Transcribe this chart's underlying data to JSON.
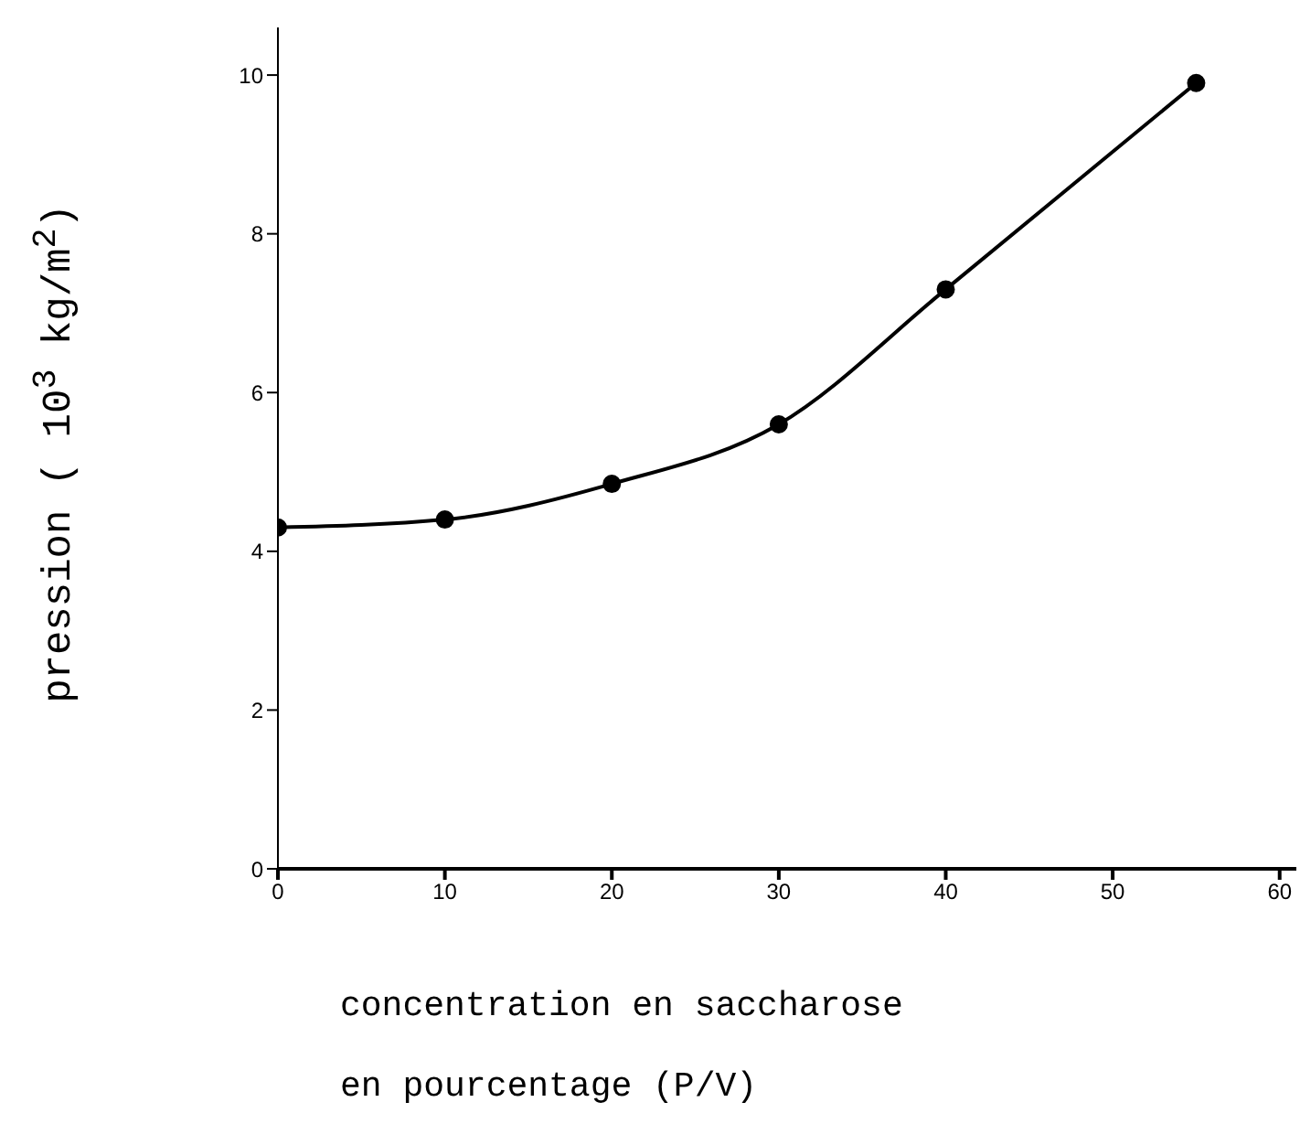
{
  "chart_data": {
    "type": "line",
    "xlabel": "concentration en saccharose\nen pourcentage (P/V)",
    "ylabel": "pression ( 10$^{3}$ kg/m$^{2}$)",
    "x": [
      0,
      10,
      20,
      30,
      40,
      55
    ],
    "series": [
      {
        "color": "#000000",
        "values": [
          4.3,
          4.4,
          4.85,
          5.6,
          7.3,
          9.9
        ]
      }
    ],
    "xlim": [
      0,
      61
    ],
    "xticks": [
      0,
      10,
      20,
      30,
      40,
      50,
      60
    ],
    "ylim": [
      0,
      10.6
    ],
    "yticks": [
      0,
      2,
      4,
      6,
      8,
      10
    ],
    "marker": "circle",
    "line_style": "solid",
    "grid": false,
    "legend": false
  }
}
